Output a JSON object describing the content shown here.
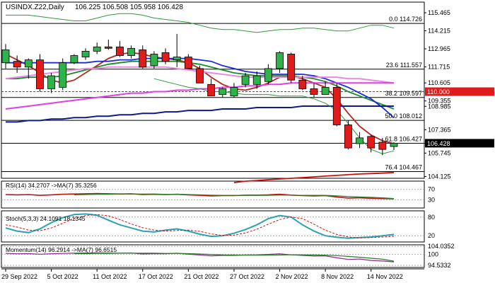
{
  "header": {
    "symbol": "USINDX.Z22,Daily",
    "ohlc": "106.225 106.508 105.958 106.428"
  },
  "colors": {
    "bull": "#2db34a",
    "bear": "#e01b1b",
    "fib": "#000000",
    "price_marker_bg": "#e01b1b",
    "current_bg": "#000000",
    "ma_red": "#b0281e",
    "ma_green": "#1c8a2a",
    "ma_blue": "#1a2bd6",
    "ma_magenta": "#e040e0",
    "ma_pink": "#e68ce0",
    "ma_navy": "#101a8a",
    "ma_darkred": "#cc1010",
    "bb": "#2c9a3a",
    "cyan": "#2ba3b0",
    "rsi_line": "#c01010",
    "rsi_ma": "#2a7a2a",
    "stoch_sig": "#d01010",
    "mom_line": "#8a2a8a",
    "mom_ma": "#2a7a2a"
  },
  "chart_data": [
    {
      "type": "candlestick",
      "pane": "price",
      "title": "USINDX.Z22,Daily",
      "ylim": [
        104.0,
        116.2
      ],
      "yticks": [
        "115.465",
        "114.215",
        "112.965",
        "111.715",
        "110.605",
        "109.355",
        "108.985",
        "107.365",
        "106.428",
        "105.745",
        "104.125"
      ],
      "ytick_values": [
        115.465,
        114.215,
        112.965,
        111.715,
        110.605,
        109.355,
        108.985,
        107.365,
        106.428,
        105.745,
        104.125
      ],
      "xticks": [
        "29 Sep 2022",
        "5 Oct 2022",
        "11 Oct 2022",
        "17 Oct 2022",
        "21 Oct 2022",
        "27 Oct 2022",
        "2 Nov 2022",
        "8 Nov 2022",
        "14 Nov 2022"
      ],
      "xtick_index": [
        0,
        4,
        8,
        12,
        16,
        20,
        24,
        28,
        32
      ],
      "candles": [
        {
          "o": 112.0,
          "h": 113.3,
          "l": 111.6,
          "c": 112.9
        },
        {
          "o": 112.1,
          "h": 112.5,
          "l": 111.3,
          "c": 111.7
        },
        {
          "o": 111.7,
          "h": 112.3,
          "l": 110.9,
          "c": 112.2
        },
        {
          "o": 112.2,
          "h": 112.6,
          "l": 110.0,
          "c": 110.2
        },
        {
          "o": 110.2,
          "h": 111.3,
          "l": 109.9,
          "c": 111.1
        },
        {
          "o": 110.3,
          "h": 112.3,
          "l": 110.1,
          "c": 112.0
        },
        {
          "o": 112.0,
          "h": 112.6,
          "l": 111.9,
          "c": 112.5
        },
        {
          "o": 112.4,
          "h": 113.0,
          "l": 112.2,
          "c": 112.8
        },
        {
          "o": 112.8,
          "h": 113.4,
          "l": 112.6,
          "c": 113.1
        },
        {
          "o": 113.1,
          "h": 113.6,
          "l": 112.9,
          "c": 113.0
        },
        {
          "o": 113.1,
          "h": 113.5,
          "l": 112.4,
          "c": 112.5
        },
        {
          "o": 112.5,
          "h": 113.2,
          "l": 112.3,
          "c": 113.0
        },
        {
          "o": 112.9,
          "h": 113.2,
          "l": 111.6,
          "c": 111.7
        },
        {
          "o": 111.8,
          "h": 112.8,
          "l": 111.6,
          "c": 112.6
        },
        {
          "o": 112.7,
          "h": 113.0,
          "l": 111.9,
          "c": 112.1
        },
        {
          "o": 112.2,
          "h": 114.0,
          "l": 111.7,
          "c": 112.4
        },
        {
          "o": 112.4,
          "h": 112.6,
          "l": 111.6,
          "c": 111.6
        },
        {
          "o": 111.6,
          "h": 111.8,
          "l": 110.6,
          "c": 110.6
        },
        {
          "o": 110.5,
          "h": 110.9,
          "l": 109.7,
          "c": 109.7
        },
        {
          "o": 109.8,
          "h": 110.3,
          "l": 109.6,
          "c": 110.2
        },
        {
          "o": 109.7,
          "h": 110.6,
          "l": 109.6,
          "c": 110.3
        },
        {
          "o": 110.5,
          "h": 111.3,
          "l": 110.3,
          "c": 111.1
        },
        {
          "o": 110.5,
          "h": 111.4,
          "l": 110.2,
          "c": 111.1
        },
        {
          "o": 110.7,
          "h": 111.9,
          "l": 110.5,
          "c": 111.6
        },
        {
          "o": 111.6,
          "h": 112.8,
          "l": 111.3,
          "c": 112.7
        },
        {
          "o": 112.6,
          "h": 112.7,
          "l": 110.6,
          "c": 110.8
        },
        {
          "o": 110.8,
          "h": 111.1,
          "l": 110.1,
          "c": 110.2
        },
        {
          "o": 110.2,
          "h": 110.6,
          "l": 109.6,
          "c": 109.8
        },
        {
          "o": 109.8,
          "h": 110.7,
          "l": 109.8,
          "c": 110.3
        },
        {
          "o": 110.3,
          "h": 110.6,
          "l": 107.6,
          "c": 107.7
        },
        {
          "o": 107.7,
          "h": 108.0,
          "l": 106.0,
          "c": 106.1
        },
        {
          "o": 106.4,
          "h": 107.2,
          "l": 106.1,
          "c": 106.8
        },
        {
          "o": 106.9,
          "h": 107.0,
          "l": 105.8,
          "c": 106.1
        },
        {
          "o": 106.5,
          "h": 106.8,
          "l": 105.6,
          "c": 106.0
        },
        {
          "o": 106.2,
          "h": 106.5,
          "l": 105.96,
          "c": 106.43
        }
      ],
      "fib_levels": [
        {
          "label": "0.0 114.726",
          "value": 114.726
        },
        {
          "label": "23.6 111.557",
          "value": 111.557
        },
        {
          "label": "38.2 109.597",
          "value": 109.597
        },
        {
          "label": "50.0 108.012",
          "value": 108.012
        },
        {
          "label": "61.8 106.427",
          "value": 106.427
        },
        {
          "label": "76.4 104.467",
          "value": 104.467
        }
      ],
      "dashed_level": {
        "label": "110.000",
        "value": 110.0
      },
      "current_price": {
        "label": "106.428",
        "value": 106.428
      },
      "moving_averages": [
        {
          "color_key": "ma_red",
          "values": [
            112.6,
            112.2,
            111.8,
            111.3,
            110.8,
            110.6,
            110.8,
            111.3,
            111.8,
            112.3,
            112.6,
            112.7,
            112.6,
            112.4,
            112.3,
            112.2,
            112.0,
            111.6,
            111.0,
            110.5,
            110.2,
            110.1,
            110.3,
            110.6,
            111.0,
            111.1,
            110.9,
            110.6,
            110.3,
            109.5,
            108.5,
            107.6,
            107.0,
            106.6,
            106.4
          ]
        },
        {
          "color_key": "ma_green",
          "values": [
            110.9,
            110.9,
            111.0,
            111.0,
            111.0,
            111.1,
            111.3,
            111.5,
            111.7,
            111.9,
            112.0,
            112.1,
            112.1,
            112.1,
            112.1,
            112.1,
            112.0,
            111.9,
            111.7,
            111.5,
            111.3,
            111.2,
            111.1,
            111.1,
            111.1,
            111.1,
            111.0,
            110.9,
            110.7,
            110.4,
            110.0,
            109.7,
            109.4,
            109.1,
            108.8
          ]
        },
        {
          "color_key": "ma_blue",
          "values": [
            112.0,
            112.0,
            112.0,
            112.0,
            112.0,
            112.0,
            112.0,
            112.0,
            112.1,
            112.1,
            112.2,
            112.2,
            112.3,
            112.3,
            112.3,
            112.3,
            112.3,
            112.2,
            112.1,
            111.8,
            111.6,
            111.4,
            111.3,
            111.2,
            111.2,
            111.2,
            111.2,
            111.1,
            110.9,
            110.6,
            110.3,
            109.9,
            109.5,
            108.9,
            108.2
          ]
        },
        {
          "color_key": "ma_pink",
          "values": [
            110.9,
            111.0,
            111.1,
            111.2,
            111.3,
            111.4,
            111.5,
            111.6,
            111.6,
            111.7,
            111.7,
            111.7,
            111.7,
            111.7,
            111.7,
            111.6,
            111.5,
            111.4,
            111.3,
            111.2,
            111.1,
            111.0,
            111.0,
            111.0,
            111.0,
            111.0,
            111.0,
            111.0,
            111.0,
            111.0,
            110.9,
            110.9,
            110.8,
            110.7,
            110.6
          ]
        },
        {
          "color_key": "ma_magenta",
          "values": [
            108.8,
            108.9,
            109.0,
            109.1,
            109.2,
            109.3,
            109.4,
            109.5,
            109.6,
            109.7,
            109.8,
            109.9,
            109.9,
            110.0,
            110.0,
            110.1,
            110.1,
            110.2,
            110.2,
            110.3,
            110.3,
            110.4,
            110.4,
            110.5,
            110.5,
            110.6,
            110.6,
            110.6,
            110.6,
            110.6,
            110.6,
            110.6,
            110.6,
            110.6,
            110.6
          ]
        },
        {
          "color_key": "ma_navy",
          "values": [
            107.9,
            107.9,
            108.0,
            108.0,
            108.1,
            108.1,
            108.2,
            108.2,
            108.3,
            108.3,
            108.4,
            108.4,
            108.5,
            108.5,
            108.6,
            108.6,
            108.7,
            108.7,
            108.7,
            108.8,
            108.8,
            108.8,
            108.9,
            108.9,
            108.9,
            108.9,
            109.0,
            109.0,
            109.0,
            109.0,
            109.0,
            109.0,
            109.0,
            109.0,
            109.0
          ]
        },
        {
          "color_key": "ma_darkred",
          "values": [
            null,
            null,
            null,
            null,
            null,
            null,
            null,
            null,
            null,
            null,
            null,
            null,
            null,
            null,
            null,
            null,
            null,
            null,
            null,
            null,
            103.7,
            103.8,
            103.85,
            103.9,
            103.95,
            104.0,
            104.05,
            104.1,
            104.15,
            104.2,
            104.25,
            104.3,
            104.33,
            104.36,
            104.4
          ]
        }
      ],
      "bollinger": {
        "upper": [
          115.3,
          115.3,
          115.3,
          115.2,
          115.1,
          115.0,
          114.9,
          114.9,
          115.1,
          115.3,
          115.4,
          115.4,
          115.3,
          115.1,
          115.0,
          114.9,
          114.8,
          114.6,
          114.4,
          114.3,
          114.3,
          114.2,
          114.1,
          114.2,
          114.3,
          114.3,
          114.4,
          114.4,
          114.3,
          114.2,
          114.2,
          114.4,
          114.6,
          114.6,
          114.4
        ],
        "lower": [
          null,
          null,
          null,
          null,
          null,
          null,
          null,
          null,
          null,
          null,
          null,
          null,
          null,
          110.9,
          110.7,
          110.5,
          110.3,
          110.2,
          110.0,
          110.0,
          109.9,
          109.8,
          109.8,
          109.8,
          109.7,
          109.7,
          109.7,
          109.5,
          109.2,
          108.7,
          107.8,
          106.8,
          106.0,
          105.7,
          105.9
        ]
      }
    },
    {
      "type": "line",
      "pane": "rsi",
      "title": "RSI(14) 34.2707 ->MA(7) 35.3256",
      "ylim": [
        0,
        100
      ],
      "yticks": [
        "70",
        "30"
      ],
      "ytick_values": [
        70,
        30
      ],
      "series": [
        {
          "values": [
            50,
            49,
            50,
            47,
            49,
            51,
            52,
            53,
            54,
            53,
            52,
            53,
            50,
            51,
            50,
            51,
            49,
            47,
            45,
            46,
            46,
            48,
            48,
            49,
            51,
            48,
            46,
            45,
            46,
            41,
            37,
            38,
            36,
            35,
            34.27
          ]
        },
        {
          "values": [
            null,
            null,
            null,
            null,
            null,
            null,
            49,
            50,
            51,
            51,
            52,
            52,
            52,
            52,
            51,
            51,
            50,
            49,
            48,
            47,
            47,
            47,
            47,
            47,
            48,
            48,
            47,
            47,
            47,
            45,
            43,
            41,
            40,
            38,
            35.33
          ]
        }
      ]
    },
    {
      "type": "line",
      "pane": "stoch",
      "title": "Stoch(5,3,3) 24.1091 18.1345",
      "ylim": [
        0,
        100
      ],
      "yticks": [
        "80",
        "20"
      ],
      "ytick_values": [
        80,
        20
      ],
      "series": [
        {
          "values": [
            45,
            35,
            30,
            42,
            62,
            78,
            88,
            90,
            86,
            70,
            55,
            45,
            35,
            32,
            38,
            42,
            35,
            25,
            18,
            20,
            28,
            40,
            55,
            75,
            85,
            80,
            55,
            35,
            20,
            15,
            12,
            14,
            16,
            20,
            24.11
          ]
        },
        {
          "values": [
            55,
            48,
            38,
            36,
            45,
            60,
            76,
            85,
            88,
            84,
            72,
            58,
            46,
            38,
            35,
            37,
            38,
            34,
            26,
            21,
            22,
            29,
            41,
            57,
            72,
            80,
            75,
            57,
            38,
            24,
            16,
            13,
            14,
            16,
            18.13
          ]
        }
      ]
    },
    {
      "type": "line",
      "pane": "momentum",
      "title": "Momentum(14) 96.2914 ->MA(7) 96.6515",
      "ylim": [
        93.5,
        104.8
      ],
      "yticks": [
        "104.0352",
        "100",
        "94.5332"
      ],
      "ytick_values": [
        104.0352,
        100,
        94.5332
      ],
      "series": [
        {
          "values": [
            100.5,
            100.3,
            100.4,
            100.1,
            100.3,
            100.5,
            100.6,
            100.7,
            100.8,
            100.7,
            100.6,
            100.7,
            100.2,
            100.4,
            100.3,
            100.6,
            100.1,
            99.7,
            99.3,
            99.5,
            99.5,
            99.7,
            99.8,
            100.0,
            100.3,
            99.8,
            99.5,
            99.2,
            99.3,
            98.3,
            97.5,
            97.7,
            97.0,
            96.7,
            96.29
          ]
        },
        {
          "values": [
            null,
            null,
            null,
            null,
            null,
            null,
            100.4,
            100.4,
            100.5,
            100.5,
            100.6,
            100.6,
            100.6,
            100.6,
            100.5,
            100.5,
            100.4,
            100.2,
            100.0,
            99.8,
            99.7,
            99.6,
            99.6,
            99.6,
            99.7,
            99.8,
            99.8,
            99.7,
            99.6,
            99.4,
            99.0,
            98.6,
            98.1,
            97.6,
            96.65
          ]
        }
      ]
    }
  ]
}
